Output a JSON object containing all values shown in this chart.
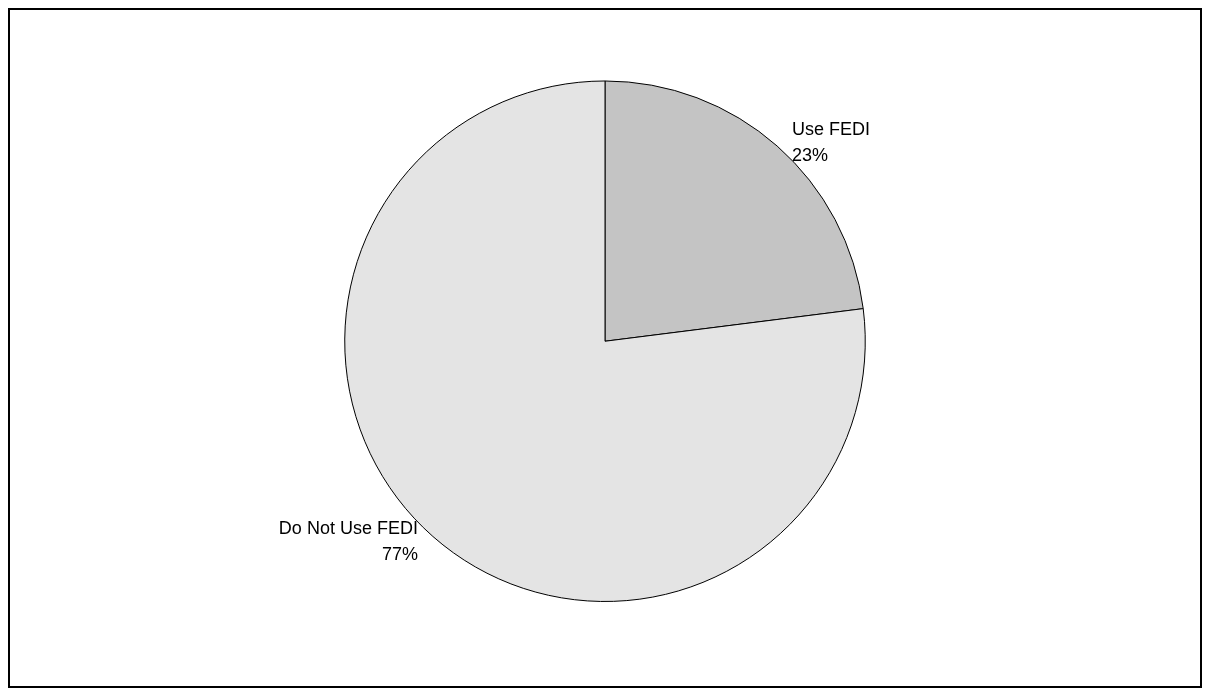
{
  "chart_data": {
    "type": "pie",
    "categories": [
      "Use FEDI",
      "Do Not Use FEDI"
    ],
    "values": [
      23,
      77
    ],
    "colors": [
      "#c4c4c4",
      "#e4e4e4"
    ],
    "value_labels": [
      "23%",
      "77%"
    ],
    "legend": false
  }
}
